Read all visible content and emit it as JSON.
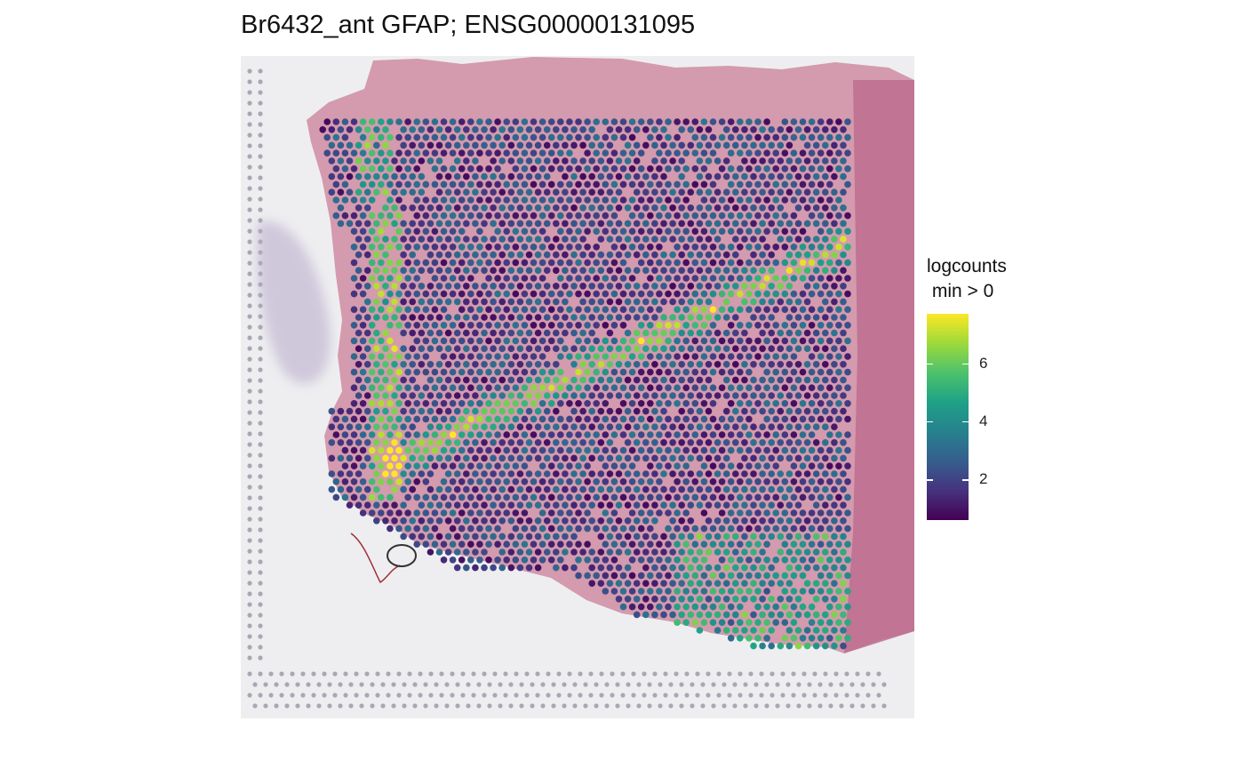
{
  "chart_data": {
    "type": "scatter",
    "title": "Br6432_ant GFAP; ENSG00000131095",
    "legend": {
      "title_line1": "logcounts",
      "title_line2": " min > 0",
      "ticks": [
        2,
        4,
        6
      ],
      "range": [
        0.6,
        7.7
      ],
      "colormap": "viridis",
      "placement": "right"
    },
    "grid": false,
    "background": "H&E tissue image",
    "spot_pattern": {
      "description_values": {
        "high_expression_bands": [
          "vertical band at left tissue edge",
          "diagonal band lower-left to upper-right",
          "band at bottom-right"
        ],
        "value_min": 0.6,
        "value_max": 7.7
      }
    }
  },
  "colors": {
    "tissue_pink": "#c8859c",
    "tissue_dark": "#b05a7c",
    "background": "#eeeef0",
    "fiducial_dots": "#a8a8b4",
    "viridis": [
      "#440154",
      "#46327e",
      "#365c8d",
      "#277f8e",
      "#1fa187",
      "#4ac16d",
      "#9fda3a",
      "#fde725"
    ]
  }
}
